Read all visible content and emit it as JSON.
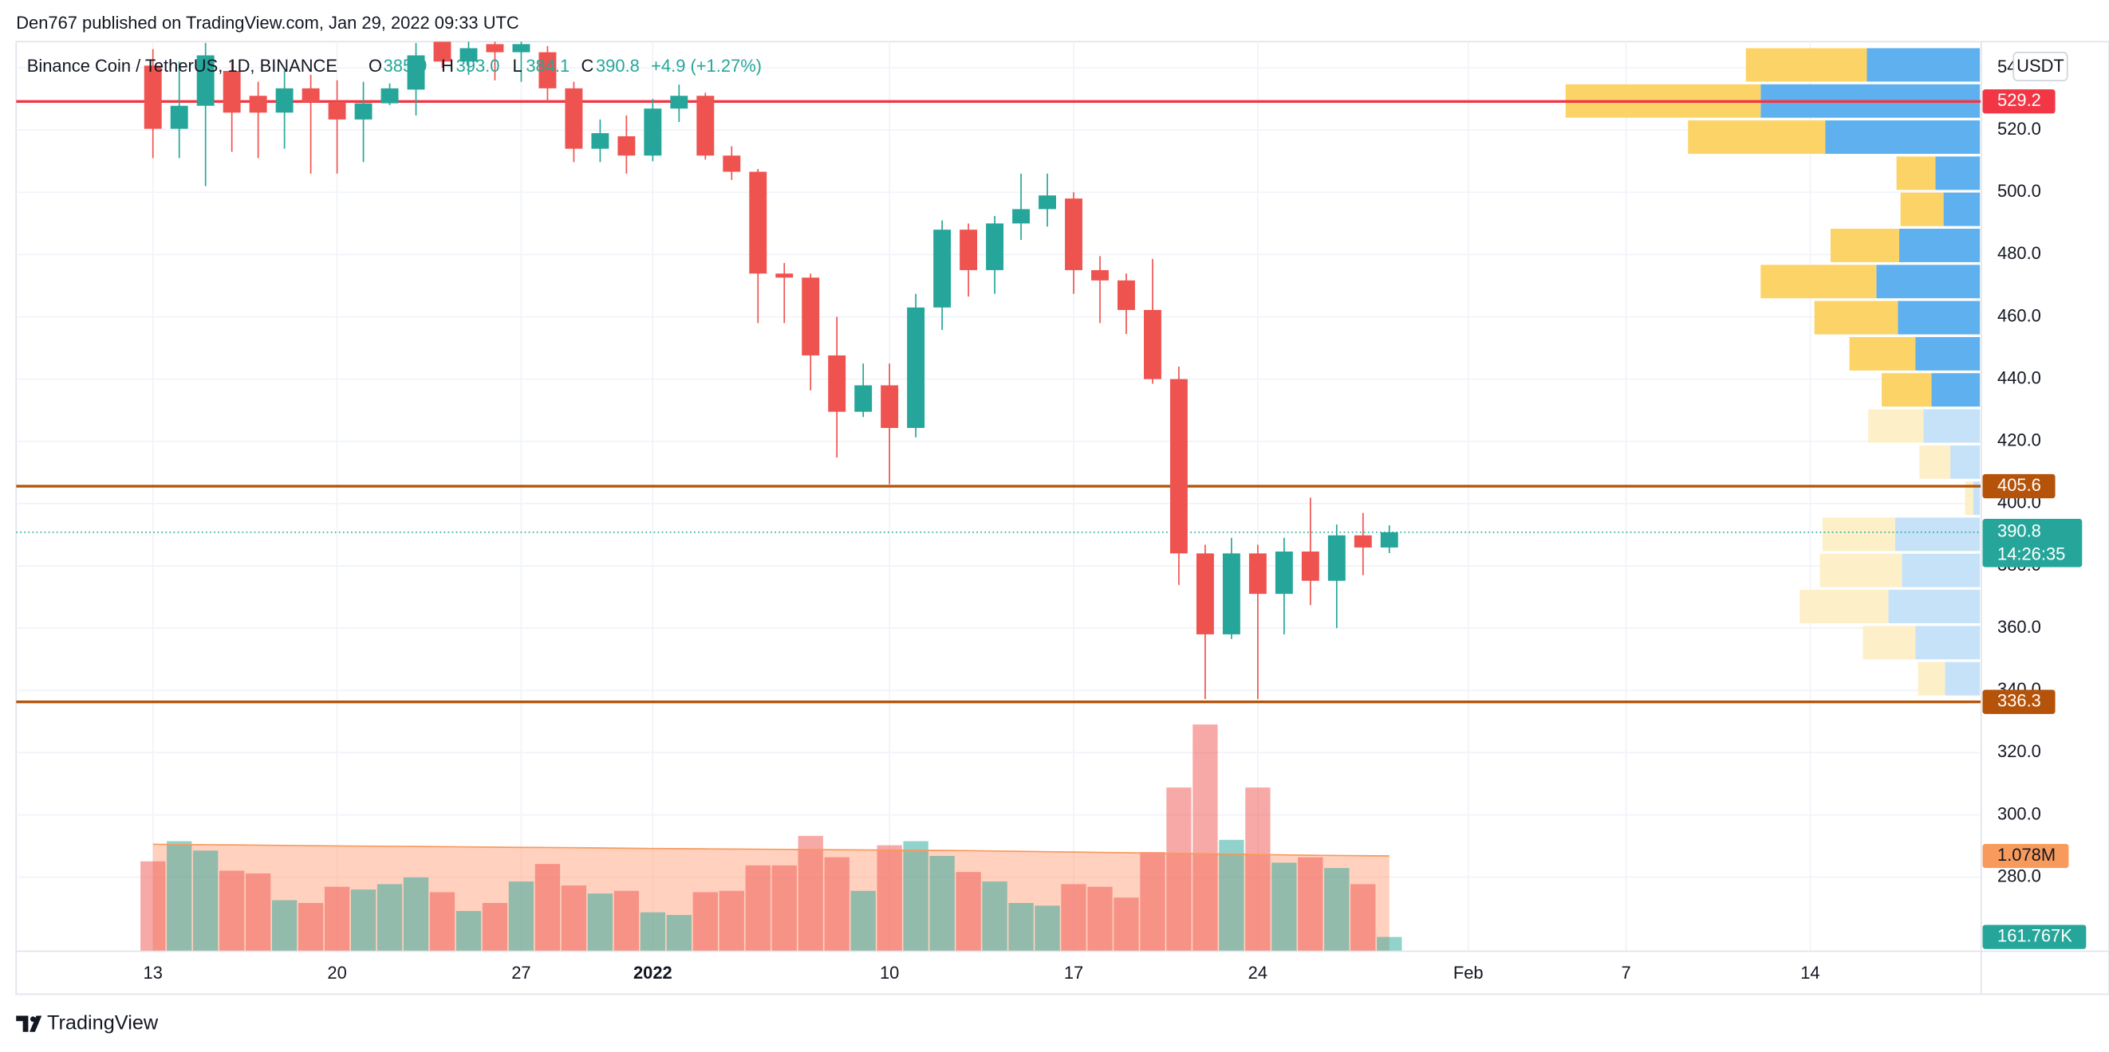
{
  "header": {
    "publisher": "Den767 published on TradingView.com, Jan 29, 2022 09:33 UTC",
    "symbol": "Binance Coin / TetherUS, 1D, BINANCE",
    "open_label": "O",
    "open": "385.9",
    "high_label": "H",
    "high": "393.0",
    "low_label": "L",
    "low": "384.1",
    "close_label": "C",
    "close": "390.8",
    "change": "+4.9 (+1.27%)"
  },
  "footer": {
    "brand": "TradingView"
  },
  "chart_data": {
    "type": "candlestick",
    "x": [
      0,
      1,
      2,
      3,
      4,
      5,
      6,
      7,
      8,
      9,
      10,
      11,
      12,
      13,
      14,
      15,
      16,
      17,
      18,
      19,
      20,
      21,
      22,
      23,
      24,
      25,
      26,
      27,
      28,
      29,
      30,
      31,
      32,
      33,
      34,
      35,
      36,
      37,
      38,
      39,
      40,
      41,
      42,
      43,
      44,
      45,
      46,
      47
    ],
    "open": [
      540.7,
      520.4,
      527.8,
      539,
      531,
      525.6,
      533.4,
      529,
      523.4,
      528.6,
      533,
      548.4,
      542,
      547.6,
      545,
      545,
      533.4,
      514,
      518,
      511.8,
      526.9,
      531,
      511.8,
      506.6,
      473.9,
      472.6,
      447.6,
      429.5,
      438,
      424.3,
      463,
      488,
      475,
      490,
      494.6,
      498,
      475,
      471.7,
      462.2,
      440,
      384,
      358,
      384,
      371,
      384.6,
      375.2,
      389.8,
      385.9
    ],
    "high": [
      546,
      542,
      548,
      542,
      535.5,
      539,
      537.7,
      536,
      535.5,
      535,
      548,
      550.6,
      549,
      549,
      549,
      547,
      535.5,
      523.4,
      524.7,
      530,
      534.6,
      532,
      514.8,
      507.5,
      477.3,
      473.9,
      460,
      445,
      445,
      467.4,
      491,
      490,
      492.4,
      506,
      506,
      500,
      479.5,
      473.9,
      478.6,
      444,
      386.8,
      389,
      386.8,
      389,
      401.9,
      393.3,
      397,
      393
    ],
    "low": [
      511,
      511,
      502,
      513,
      511,
      514,
      506,
      506,
      509.7,
      528,
      524.7,
      540,
      537.7,
      536,
      535.5,
      529,
      509.7,
      509.7,
      506,
      510,
      522.6,
      510.5,
      504,
      458,
      458,
      436.4,
      414.8,
      427.8,
      406.2,
      421.3,
      455.8,
      466.5,
      467.4,
      484.7,
      489,
      467.4,
      458,
      454.5,
      438.5,
      373.9,
      337.2,
      356.5,
      337.2,
      358,
      367.4,
      360,
      377,
      384.1
    ],
    "close": [
      520.4,
      527.8,
      544,
      525.6,
      525.6,
      533.4,
      529,
      523.4,
      528.6,
      533.4,
      544,
      542,
      546.3,
      545,
      547.6,
      533.4,
      514,
      519,
      511.8,
      526.9,
      531,
      511.8,
      506.6,
      473.9,
      472.6,
      447.6,
      429.5,
      438,
      424.3,
      463,
      488,
      475,
      490,
      494.6,
      499,
      475,
      471.7,
      462.2,
      440,
      384,
      358,
      384,
      371,
      384.6,
      375.2,
      389.8,
      385.9,
      390.8
    ],
    "volume": [
      1.017,
      1.245,
      1.139,
      0.911,
      0.88,
      0.577,
      0.546,
      0.729,
      0.698,
      0.759,
      0.835,
      0.668,
      0.455,
      0.546,
      0.789,
      0.987,
      0.744,
      0.653,
      0.683,
      0.44,
      0.41,
      0.668,
      0.683,
      0.971,
      0.971,
      1.305,
      1.063,
      0.683,
      1.199,
      1.245,
      1.078,
      0.896,
      0.789,
      0.546,
      0.516,
      0.759,
      0.729,
      0.607,
      1.123,
      1.852,
      2.565,
      1.26,
      1.852,
      1.002,
      1.063,
      0.941,
      0.759,
      0.161767
    ],
    "volume_ma": [
      1.21,
      1.207,
      1.205,
      1.203,
      1.2,
      1.197,
      1.194,
      1.191,
      1.189,
      1.187,
      1.185,
      1.183,
      1.18,
      1.177,
      1.175,
      1.173,
      1.171,
      1.168,
      1.165,
      1.162,
      1.16,
      1.158,
      1.156,
      1.154,
      1.152,
      1.15,
      1.148,
      1.146,
      1.144,
      1.142,
      1.14,
      1.138,
      1.134,
      1.13,
      1.126,
      1.122,
      1.118,
      1.114,
      1.11,
      1.106,
      1.102,
      1.098,
      1.094,
      1.09,
      1.086,
      1.083,
      1.08,
      1.078
    ],
    "up_color": "#26a69a",
    "down_color": "#ef5350",
    "xlim": [
      -5.2,
      69.5
    ],
    "xticks": [
      {
        "value": 0,
        "label": "13"
      },
      {
        "value": 7,
        "label": "20"
      },
      {
        "value": 14,
        "label": "27"
      },
      {
        "value": 19,
        "label": "2022"
      },
      {
        "value": 28,
        "label": "10"
      },
      {
        "value": 35,
        "label": "17"
      },
      {
        "value": 42,
        "label": "24"
      },
      {
        "value": 50,
        "label": "Feb"
      },
      {
        "value": 56,
        "label": "7"
      },
      {
        "value": 63,
        "label": "14"
      }
    ],
    "ylim": [
      256.2,
      548.4
    ],
    "yticks": [
      {
        "value": 540,
        "label": "540.0"
      },
      {
        "value": 520,
        "label": "520.0"
      },
      {
        "value": 500,
        "label": "500.0"
      },
      {
        "value": 480,
        "label": "480.0"
      },
      {
        "value": 460,
        "label": "460.0"
      },
      {
        "value": 440,
        "label": "440.0"
      },
      {
        "value": 420,
        "label": "420.0"
      },
      {
        "value": 400,
        "label": "400.0"
      },
      {
        "value": 380,
        "label": "380.0"
      },
      {
        "value": 360,
        "label": "360.0"
      },
      {
        "value": 340,
        "label": "340.0"
      },
      {
        "value": 320,
        "label": "320.0"
      },
      {
        "value": 300,
        "label": "300.0"
      },
      {
        "value": 280,
        "label": "280.0"
      }
    ],
    "vlim": [
      0,
      10.29
    ],
    "grid": true,
    "currency": "USDT",
    "levels": [
      {
        "value": 529.2,
        "color": "#f23645"
      },
      {
        "value": 405.6,
        "color": "#b45309"
      },
      {
        "value": 336.3,
        "color": "#b45309"
      }
    ],
    "last": {
      "value": 390.8,
      "countdown": "14:26:35",
      "color": "#26a69a"
    },
    "volume_labels": [
      {
        "value": 1.078,
        "label": "1.078M",
        "color": "#f89a5c"
      },
      {
        "value": 0.161767,
        "label": "161.767K",
        "color": "#26a69a"
      }
    ],
    "profile": {
      "top": 546.3,
      "step": 11.6,
      "up_color": "#5eb0ee",
      "down_color": "#fcd366",
      "up_faded": "#c6e2f8",
      "down_faded": "#fdf0c8",
      "rows": [
        {
          "up": 84,
          "down": 90,
          "value_area": true
        },
        {
          "up": 163,
          "down": 145,
          "value_area": true
        },
        {
          "up": 115,
          "down": 102,
          "value_area": true
        },
        {
          "up": 33,
          "down": 29,
          "value_area": true
        },
        {
          "up": 27,
          "down": 32,
          "value_area": true
        },
        {
          "up": 60,
          "down": 51,
          "value_area": true
        },
        {
          "up": 77,
          "down": 86,
          "value_area": true
        },
        {
          "up": 61,
          "down": 62,
          "value_area": true
        },
        {
          "up": 48,
          "down": 49,
          "value_area": true
        },
        {
          "up": 36,
          "down": 37,
          "value_area": true
        },
        {
          "up": 42,
          "down": 41,
          "value_area": false
        },
        {
          "up": 22,
          "down": 23,
          "value_area": false
        },
        {
          "up": 5,
          "down": 6,
          "value_area": false
        },
        {
          "up": 63,
          "down": 54,
          "value_area": false
        },
        {
          "up": 58,
          "down": 61,
          "value_area": false
        },
        {
          "up": 68,
          "down": 66,
          "value_area": false
        },
        {
          "up": 48,
          "down": 39,
          "value_area": false
        },
        {
          "up": 26,
          "down": 20,
          "value_area": false
        }
      ]
    }
  }
}
